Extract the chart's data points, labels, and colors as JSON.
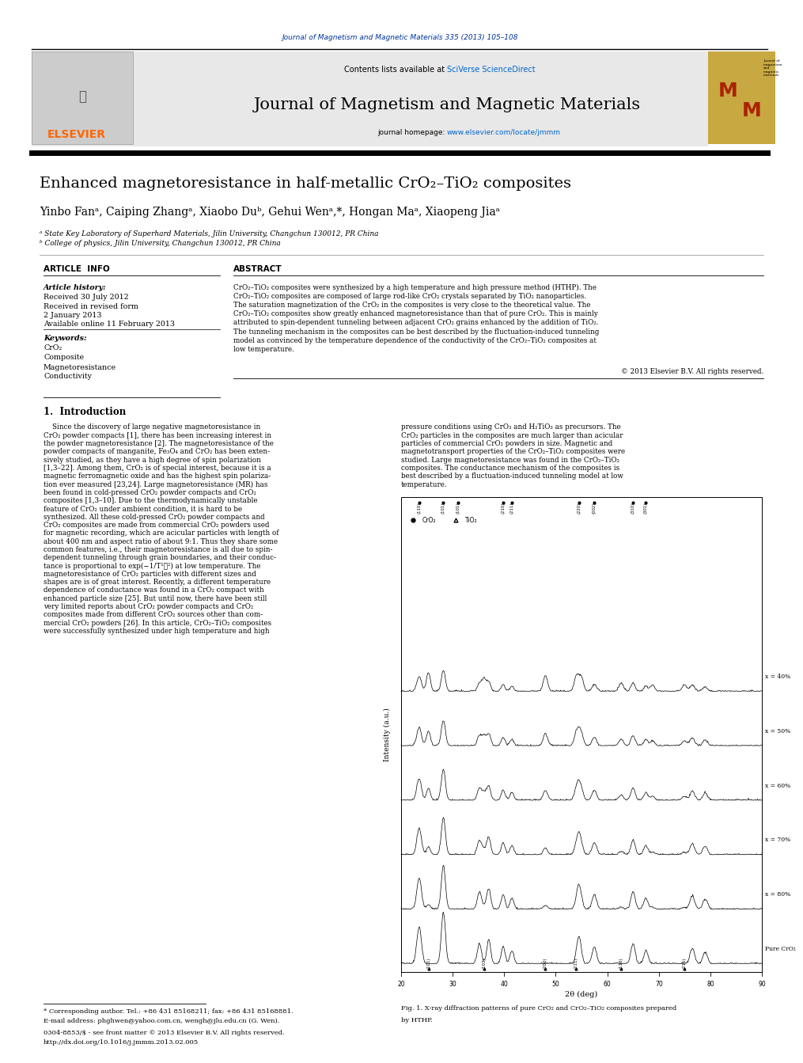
{
  "page_width": 9.92,
  "page_height": 13.23,
  "bg_color": "#ffffff",
  "journal_title_header": "Journal of Magnetism and Magnetic Materials 335 (2013) 105–108",
  "journal_name": "Journal of Magnetism and Magnetic Materials",
  "homepage_url": "www.elsevier.com/locate/jmmm",
  "article_info_header": "ARTICLE  INFO",
  "abstract_header": "ABSTRACT",
  "article_history_label": "Article history:",
  "received1": "Received 30 July 2012",
  "received2": "Received in revised form",
  "received3": "2 January 2013",
  "available": "Available online 11 February 2013",
  "keywords_label": "Keywords:",
  "keywords": [
    "CrO₂",
    "Composite",
    "Magnetoresistance",
    "Conductivity"
  ],
  "copyright": "© 2013 Elsevier B.V. All rights reserved.",
  "intro_header": "1.  Introduction",
  "fig_caption_line1": "Fig. 1. X-ray diffraction patterns of pure CrO₂ and CrO₂–TiO₂ composites prepared",
  "fig_caption_line2": "by HTHP.",
  "footnote_star": "* Corresponding author. Tel.: +86 431 85168211; fax: +86 431 85168881.",
  "footnote_email": "E-mail address: phghwen@yahoo.com.cn, wengh@jlu.edu.cn (G. Wen).",
  "footnote_issn": "0304-8853/$ - see front matter © 2013 Elsevier B.V. All rights reserved.",
  "footnote_doi": "http://dx.doi.org/10.1016/j.jmmm.2013.02.005",
  "elsevier_orange": "#ff6600",
  "link_blue": "#0066cc",
  "dark_blue": "#003399",
  "abstract_lines": [
    "CrO₂–TiO₂ composites were synthesized by a high temperature and high pressure method (HTHP). The",
    "CrO₂–TiO₂ composites are composed of large rod-like CrO₂ crystals separated by TiO₂ nanoparticles.",
    "The saturation magnetization of the CrO₂ in the composites is very close to the theoretical value. The",
    "CrO₂–TiO₂ composites show greatly enhanced magnetoresistance than that of pure CrO₂. This is mainly",
    "attributed to spin-dependent tunneling between adjacent CrO₂ grains enhanced by the addition of TiO₂.",
    "The tunneling mechanism in the composites can be best described by the fluctuation-induced tunneling",
    "model as convinced by the temperature dependence of the conductivity of the CrO₂–TiO₂ composites at",
    "low temperature."
  ],
  "intro_col1_lines": [
    "    Since the discovery of large negative magnetoresistance in",
    "CrO₂ powder compacts [1], there has been increasing interest in",
    "the powder magnetoresistance [2]. The magnetoresistance of the",
    "powder compacts of manganite, Fe₃O₄ and CrO₂ has been exten-",
    "sively studied, as they have a high degree of spin polarization",
    "[1,3–22]. Among them, CrO₂ is of special interest, because it is a",
    "magnetic ferromagnetic oxide and has the highest spin polariza-",
    "tion ever measured [23,24]. Large magnetoresistance (MR) has",
    "been found in cold-pressed CrO₂ powder compacts and CrO₂",
    "composites [1,3–10]. Due to the thermodynamically unstable",
    "feature of CrO₂ under ambient condition, it is hard to be",
    "synthesized. All these cold-pressed CrO₂ powder compacts and",
    "CrO₂ composites are made from commercial CrO₂ powders used",
    "for magnetic recording, which are acicular particles with length of",
    "about 400 nm and aspect ratio of about 9:1. Thus they share some",
    "common features, i.e., their magnetoresistance is all due to spin-",
    "dependent tunneling through grain boundaries, and their conduc-",
    "tance is proportional to exp(−1/T¹ᐟ²) at low temperature. The",
    "magnetoresistance of CrO₂ particles with different sizes and",
    "shapes are is of great interest. Recently, a different temperature",
    "dependence of conductance was found in a CrO₂ compact with",
    "enhanced particle size [25]. But until now, there have been still",
    "very limited reports about CrO₂ powder compacts and CrO₂",
    "composites made from different CrO₂ sources other than com-",
    "mercial CrO₂ powders [26]. In this article, CrO₂–TiO₂ composites",
    "were successfully synthesized under high temperature and high"
  ],
  "intro_col2_lines": [
    "pressure conditions using CrO₃ and H₂TiO₃ as precursors. The",
    "CrO₂ particles in the composites are much larger than acicular",
    "particles of commercial CrO₂ powders in size. Magnetic and",
    "magnetotransport properties of the CrO₂–TiO₂ composites were",
    "studied. Large magnetoresistance was found in the CrO₂–TiO₂",
    "composites. The conductance mechanism of the composites is",
    "best described by a fluctuation-induced tunneling model at low",
    "temperature."
  ],
  "xrd_labels": [
    "Pure CrO₂",
    "x = 80%",
    "x = 70%",
    "x = 60%",
    "x = 50%",
    "x = 40%"
  ]
}
